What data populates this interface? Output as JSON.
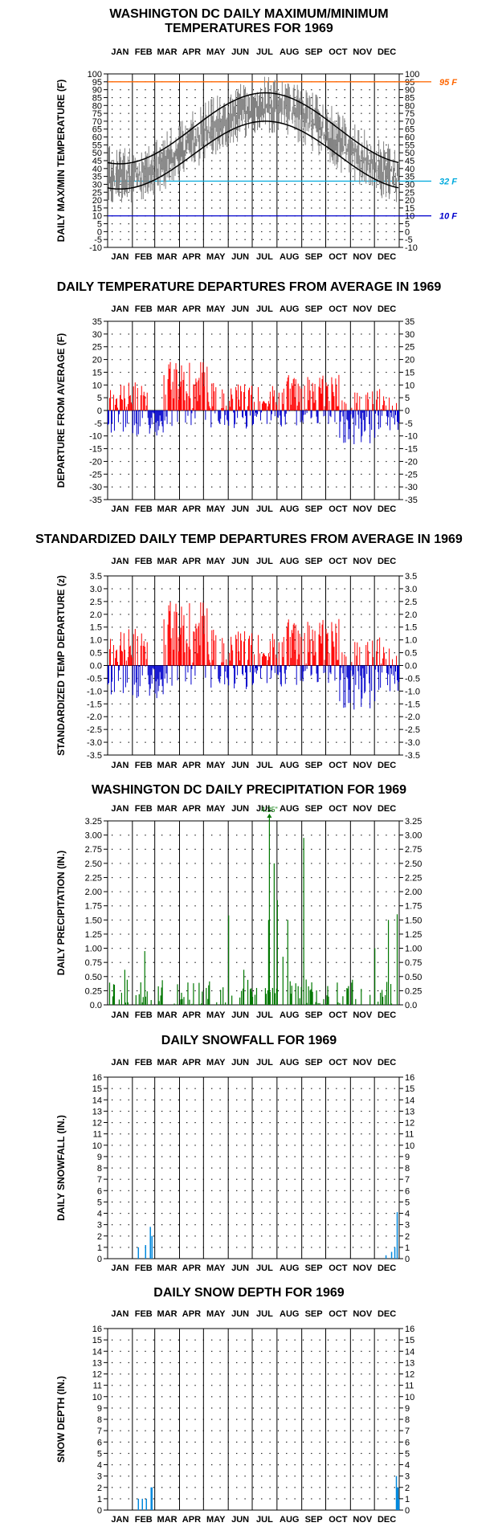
{
  "months": [
    "JAN",
    "FEB",
    "MAR",
    "APR",
    "MAY",
    "JUN",
    "JUL",
    "AUG",
    "SEP",
    "OCT",
    "NOV",
    "DEC"
  ],
  "colors": {
    "max_line": "#000000",
    "range_bar": "#808080",
    "normal_line": "#000000",
    "ref_95": "#ff6600",
    "ref_32": "#00aadd",
    "ref_10": "#0000cc",
    "positive": "#ff0000",
    "negative": "#0000cc",
    "precip": "#007700",
    "snow": "#0088dd",
    "grid_dot": "#000000"
  },
  "chart_data": [
    {
      "id": "temp",
      "type": "area",
      "title": [
        "WASHINGTON DC DAILY MAXIMUM/MINIMUM",
        "TEMPERATURES FOR 1969"
      ],
      "ylabel": "DAILY MAX/MIN TEMPERATURE (F)",
      "ylim": [
        -10,
        100
      ],
      "yticks": [
        -10,
        -5,
        0,
        5,
        10,
        15,
        20,
        25,
        30,
        35,
        40,
        45,
        50,
        55,
        60,
        65,
        70,
        75,
        80,
        85,
        90,
        95,
        100
      ],
      "ref_lines": [
        {
          "value": 95,
          "label": "95 F",
          "color": "#ff6600"
        },
        {
          "value": 32,
          "label": "32 F",
          "color": "#00aadd"
        },
        {
          "value": 10,
          "label": "10 F",
          "color": "#0000cc"
        }
      ],
      "normal_high": {
        "jan": 43,
        "jul": 88
      },
      "normal_low": {
        "jan": 27,
        "jul": 70
      },
      "series_note": "daily max/min range bars with normal high/low curves"
    },
    {
      "id": "dep",
      "type": "bar",
      "title": [
        "DAILY TEMPERATURE DEPARTURES FROM AVERAGE IN 1969"
      ],
      "ylabel": "DEPARTURE FROM AVERAGE (F)",
      "ylim": [
        -35,
        35
      ],
      "yticks": [
        -35,
        -30,
        -25,
        -20,
        -15,
        -10,
        -5,
        0,
        5,
        10,
        15,
        20,
        25,
        30,
        35
      ]
    },
    {
      "id": "std",
      "type": "bar",
      "title": [
        "STANDARDIZED DAILY TEMP DEPARTURES FROM AVERAGE IN 1969"
      ],
      "ylabel": "STANDARDIZED TEMP DEPARTURE (z)",
      "ylim": [
        -3.5,
        3.5
      ],
      "yticks": [
        "-3.5",
        "-3.0",
        "-2.5",
        "-2.0",
        "-1.5",
        "-1.0",
        "-0.5",
        "0.0",
        "0.5",
        "1.0",
        "1.5",
        "2.0",
        "2.5",
        "3.0",
        "3.5"
      ]
    },
    {
      "id": "precip",
      "type": "bar",
      "title": [
        "WASHINGTON DC DAILY PRECIPITATION FOR 1969"
      ],
      "ylabel": "DAILY PRECIPITATION (IN.)",
      "ylim": [
        0,
        3.25
      ],
      "yticks": [
        "0.0",
        "0.25",
        "0.50",
        "0.75",
        "1.00",
        "1.25",
        "1.50",
        "1.75",
        "2.00",
        "2.25",
        "2.50",
        "2.75",
        "3.00",
        "3.25"
      ],
      "annotation": "4.35\"",
      "notable": [
        {
          "day": 21,
          "value": 0.62
        },
        {
          "day": 46,
          "value": 0.95
        },
        {
          "day": 151,
          "value": 1.58
        },
        {
          "day": 170,
          "value": 0.62
        },
        {
          "day": 201,
          "value": 1.5
        },
        {
          "day": 202,
          "value": 4.35
        },
        {
          "day": 208,
          "value": 2.5
        },
        {
          "day": 212,
          "value": 1.85
        },
        {
          "day": 219,
          "value": 0.85
        },
        {
          "day": 225,
          "value": 1.5
        },
        {
          "day": 245,
          "value": 2.95
        },
        {
          "day": 334,
          "value": 1.0
        },
        {
          "day": 351,
          "value": 1.5
        },
        {
          "day": 362,
          "value": 1.6
        }
      ]
    },
    {
      "id": "snow",
      "type": "bar",
      "title": [
        "DAILY SNOWFALL FOR 1969"
      ],
      "ylabel": "DAILY SNOWFALL (IN.)",
      "ylim": [
        0,
        16
      ],
      "yticks": [
        0,
        1,
        2,
        3,
        4,
        5,
        6,
        7,
        8,
        9,
        10,
        11,
        12,
        13,
        14,
        15,
        16
      ],
      "values": [
        {
          "day": 38,
          "value": 1.0
        },
        {
          "day": 47,
          "value": 1.2
        },
        {
          "day": 53,
          "value": 2.8
        },
        {
          "day": 55,
          "value": 2.0
        },
        {
          "day": 348,
          "value": 0.3
        },
        {
          "day": 355,
          "value": 0.6
        },
        {
          "day": 359,
          "value": 1.0
        },
        {
          "day": 362,
          "value": 4.1
        }
      ]
    },
    {
      "id": "depth",
      "type": "bar",
      "title": [
        "DAILY SNOW DEPTH FOR 1969"
      ],
      "ylabel": "SNOW DEPTH (IN.)",
      "ylim": [
        0,
        16
      ],
      "yticks": [
        0,
        1,
        2,
        3,
        4,
        5,
        6,
        7,
        8,
        9,
        10,
        11,
        12,
        13,
        14,
        15,
        16
      ],
      "values": [
        {
          "day": 38,
          "value": 1
        },
        {
          "day": 43,
          "value": 1
        },
        {
          "day": 48,
          "value": 1
        },
        {
          "day": 54,
          "value": 2
        },
        {
          "day": 55,
          "value": 2
        },
        {
          "day": 361,
          "value": 3
        },
        {
          "day": 362,
          "value": 2
        },
        {
          "day": 363,
          "value": 2
        },
        {
          "day": 364,
          "value": 1
        }
      ]
    }
  ]
}
